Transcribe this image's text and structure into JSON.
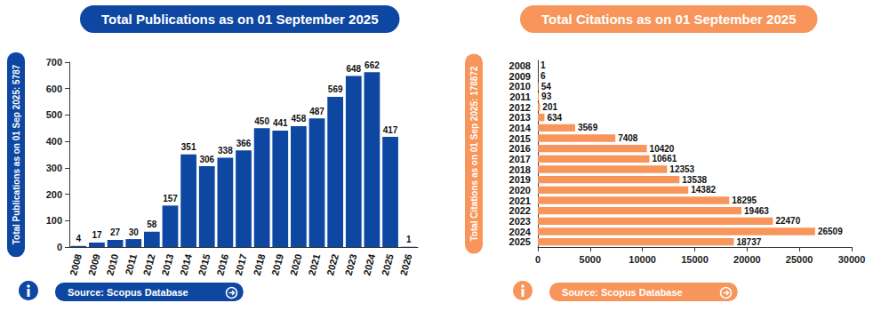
{
  "chart_data": [
    {
      "type": "bar",
      "title": "Total Publications as on 01 September 2025",
      "y_label": "Total Publications as on 01 Sep 2025: 5787",
      "annotation": "Source: Scopus Database",
      "categories": [
        "2008",
        "2009",
        "2010",
        "2011",
        "2012",
        "2013",
        "2014",
        "2015",
        "2016",
        "2017",
        "2018",
        "2019",
        "2020",
        "2021",
        "2022",
        "2023",
        "2024",
        "2025",
        "2026"
      ],
      "values": [
        4,
        17,
        27,
        30,
        58,
        157,
        351,
        306,
        338,
        366,
        450,
        441,
        458,
        487,
        569,
        648,
        662,
        417,
        1
      ],
      "color": "#0d47a1",
      "ylim": [
        0,
        700
      ],
      "yticks": [
        0,
        100,
        200,
        300,
        400,
        500,
        600,
        700
      ],
      "grid": false,
      "data_labels": true
    },
    {
      "type": "bar",
      "title": "Total Citations as on 01 September 2025",
      "y_label": "Total Citations as on 01 Sep 2025: 178872",
      "annotation": "Source: Scopus Database",
      "orientation": "horizontal",
      "categories": [
        "2008",
        "2009",
        "2010",
        "2011",
        "2012",
        "2013",
        "2014",
        "2015",
        "2016",
        "2017",
        "2018",
        "2019",
        "2020",
        "2021",
        "2022",
        "2023",
        "2024",
        "2025"
      ],
      "values": [
        1,
        6,
        54,
        93,
        201,
        634,
        3569,
        7408,
        10420,
        10661,
        12353,
        13538,
        14382,
        18295,
        19463,
        22470,
        26509,
        18737
      ],
      "color": "#f7955a",
      "xlim": [
        0,
        30000
      ],
      "xticks": [
        0,
        5000,
        10000,
        15000,
        20000,
        25000,
        30000
      ],
      "grid": false,
      "data_labels": true
    }
  ]
}
